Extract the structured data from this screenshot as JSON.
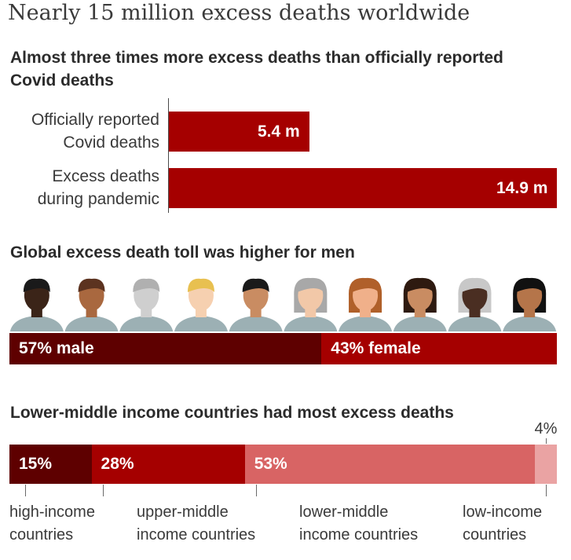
{
  "title": "Nearly 15 million excess deaths worldwide",
  "chart_data": [
    {
      "type": "bar",
      "orientation": "horizontal",
      "title": "Almost three times more excess deaths than officially reported Covid deaths",
      "categories": [
        "Officially reported Covid deaths",
        "Excess deaths during pandemic"
      ],
      "category_lines": [
        [
          "Officially reported",
          "Covid deaths"
        ],
        [
          "Excess deaths",
          "during pandemic"
        ]
      ],
      "values": [
        5.4,
        14.9
      ],
      "value_labels": [
        "5.4 m",
        "14.9 m"
      ],
      "unit": "m",
      "xlim": [
        0,
        14.9
      ],
      "color": "#a50000"
    },
    {
      "type": "bar",
      "orientation": "stacked-horizontal",
      "title": "Global excess death toll was higher for men",
      "categories": [
        "male",
        "female"
      ],
      "values": [
        57,
        43
      ],
      "value_labels": [
        "57% male",
        "43% female"
      ],
      "unit": "%",
      "colors": [
        "#5e0000",
        "#a50000"
      ],
      "icons": [
        "person-icon",
        "person-icon",
        "person-icon",
        "person-icon",
        "person-icon",
        "person-icon",
        "person-icon",
        "person-icon",
        "person-icon",
        "person-icon"
      ]
    },
    {
      "type": "bar",
      "orientation": "stacked-horizontal",
      "title": "Lower-middle income countries had most excess deaths",
      "categories": [
        "high-income countries",
        "upper-middle income countries",
        "lower-middle income countries",
        "low-income countries"
      ],
      "category_lines": [
        [
          "high-income",
          "countries"
        ],
        [
          "upper-middle",
          "income countries"
        ],
        [
          "lower-middle",
          "income countries"
        ],
        [
          "low-income",
          "countries"
        ]
      ],
      "values": [
        15,
        28,
        53,
        4
      ],
      "value_labels": [
        "15%",
        "28%",
        "53%",
        "4%"
      ],
      "unit": "%",
      "colors": [
        "#5e0000",
        "#a50000",
        "#d86464",
        "#eaa3a3"
      ]
    }
  ]
}
